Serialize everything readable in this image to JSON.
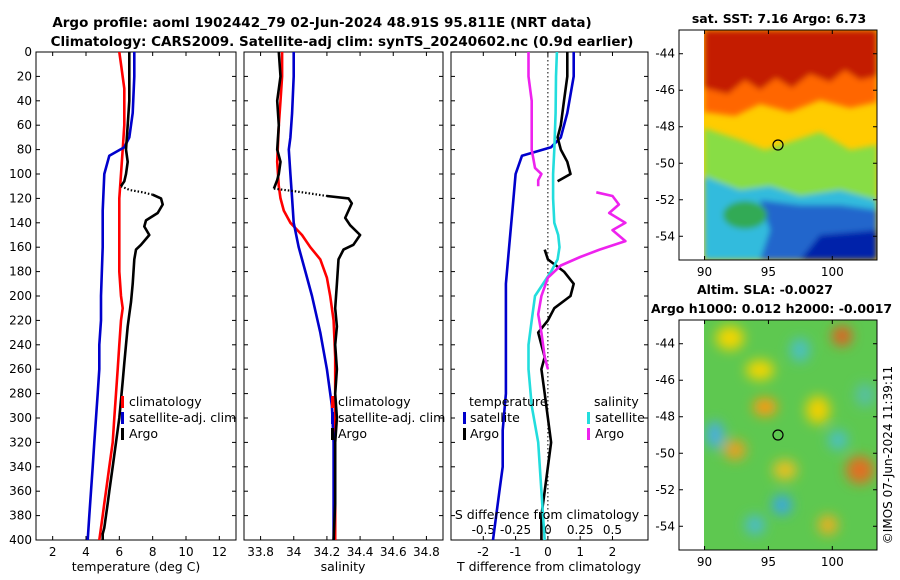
{
  "titles": {
    "line1": "Argo profile: aoml 1902442_79 02-Jun-2024 48.91S 95.811E (NRT data)",
    "line2": "Climatology: CARS2009. Satellite-adj clim: synTS_20240602.nc (0.9d earlier)"
  },
  "side_label": "©IMOS 07-Jun-2024 11:39:11",
  "colors": {
    "red": "#ff0000",
    "blue": "#0000cc",
    "black": "#000000",
    "cyan": "#22dddd",
    "magenta": "#ee22ee"
  },
  "chart_data": [
    {
      "type": "line",
      "id": "temperature",
      "xlabel": "temperature (deg C)",
      "xlim": [
        1,
        13
      ],
      "xticks": [
        2,
        4,
        6,
        8,
        10,
        12
      ],
      "ylim": [
        400,
        0
      ],
      "yticks": [
        0,
        20,
        40,
        60,
        80,
        100,
        120,
        140,
        160,
        180,
        200,
        220,
        240,
        260,
        280,
        300,
        320,
        340,
        360,
        380,
        400
      ],
      "legend": [
        "climatology",
        "satellite-adj. clim",
        "Argo"
      ],
      "series": [
        {
          "name": "climatology",
          "color": "red",
          "x": [
            6.0,
            6.1,
            6.3,
            6.3,
            6.2,
            6.1,
            6.0,
            6.0,
            6.0,
            6.0,
            6.1,
            6.2,
            6.1,
            6.0,
            5.9,
            5.8,
            5.7,
            5.6,
            5.4,
            5.2,
            5.1,
            5.0,
            4.9,
            4.8
          ],
          "y": [
            0,
            10,
            30,
            60,
            80,
            100,
            120,
            140,
            160,
            180,
            200,
            210,
            220,
            240,
            260,
            280,
            300,
            320,
            340,
            360,
            370,
            380,
            390,
            400
          ]
        },
        {
          "name": "satellite-adj. clim",
          "color": "blue",
          "x": [
            6.9,
            6.9,
            6.8,
            6.6,
            6.3,
            5.4,
            5.1,
            5.0,
            5.0,
            4.9,
            4.9,
            4.8,
            4.8,
            4.7,
            4.6,
            4.5,
            4.4,
            4.3,
            4.2,
            4.1
          ],
          "y": [
            0,
            20,
            50,
            70,
            78,
            85,
            100,
            130,
            160,
            200,
            220,
            240,
            260,
            280,
            300,
            320,
            340,
            360,
            380,
            400
          ]
        },
        {
          "name": "Argo",
          "color": "black",
          "x": [
            6.6,
            6.6,
            6.6,
            6.5,
            6.4,
            6.5,
            6.4,
            6.3,
            6.1
          ],
          "y": [
            0,
            20,
            40,
            60,
            80,
            90,
            100,
            106,
            110
          ],
          "dotted": false
        },
        {
          "name": "Argo-gap",
          "color": "black",
          "x": [
            6.1,
            6.6,
            7.4,
            8.0
          ],
          "y": [
            110,
            113,
            115,
            117
          ],
          "dotted": true
        },
        {
          "name": "Argo-deep",
          "color": "black",
          "x": [
            8.0,
            8.5,
            8.6,
            8.3,
            7.6,
            7.5,
            7.8,
            7.3,
            7.0,
            6.9,
            6.8,
            6.7,
            6.6,
            6.5,
            6.4,
            6.3,
            6.2,
            6.1,
            6.0,
            5.8,
            5.6,
            5.4,
            5.3,
            5.2,
            5.1,
            5.0,
            5.0
          ],
          "y": [
            117,
            120,
            125,
            132,
            138,
            143,
            150,
            158,
            162,
            170,
            190,
            205,
            215,
            225,
            240,
            255,
            270,
            285,
            300,
            320,
            340,
            360,
            370,
            380,
            390,
            395,
            400
          ],
          "dotted": false
        }
      ]
    },
    {
      "type": "line",
      "id": "salinity",
      "xlabel": "salinity",
      "xlim": [
        33.7,
        34.9
      ],
      "xticks": [
        33.8,
        34.0,
        34.2,
        34.4,
        34.6,
        34.8
      ],
      "xtick_labels": [
        "33.8",
        "34",
        "34.2",
        "34.4",
        "34.6",
        "34.8"
      ],
      "ylim": [
        400,
        0
      ],
      "legend": [
        "climatology",
        "satellite-adj. clim",
        "Argo"
      ],
      "series": [
        {
          "name": "climatology",
          "color": "red",
          "x": [
            33.93,
            33.93,
            33.92,
            33.91,
            33.9,
            33.91,
            33.92,
            33.94,
            33.98,
            34.05,
            34.1,
            34.16,
            34.2,
            34.22,
            34.24,
            34.25,
            34.25,
            34.25,
            34.25,
            34.25
          ],
          "y": [
            0,
            20,
            40,
            60,
            90,
            110,
            120,
            130,
            140,
            150,
            160,
            170,
            185,
            200,
            220,
            250,
            280,
            320,
            360,
            400
          ]
        },
        {
          "name": "satellite-adj. clim",
          "color": "blue",
          "x": [
            34.0,
            34.0,
            33.99,
            33.98,
            33.97,
            33.98,
            33.99,
            34.0,
            34.03,
            34.07,
            34.11,
            34.16,
            34.2,
            34.23,
            34.24,
            34.24,
            34.24
          ],
          "y": [
            0,
            20,
            50,
            70,
            80,
            100,
            120,
            140,
            160,
            180,
            200,
            230,
            260,
            290,
            320,
            360,
            400
          ]
        },
        {
          "name": "Argo",
          "color": "black",
          "x": [
            33.91,
            33.92,
            33.9,
            33.91,
            33.9,
            33.92,
            33.91,
            33.9,
            33.88
          ],
          "y": [
            0,
            20,
            40,
            60,
            80,
            90,
            100,
            105,
            112
          ],
          "dotted": false
        },
        {
          "name": "Argo-gap",
          "color": "black",
          "x": [
            33.88,
            34.0,
            34.1,
            34.2
          ],
          "y": [
            112,
            114,
            116,
            118
          ],
          "dotted": true
        },
        {
          "name": "Argo-deep",
          "color": "black",
          "x": [
            34.2,
            34.33,
            34.35,
            34.33,
            34.31,
            34.34,
            34.4,
            34.36,
            34.3,
            34.27,
            34.26,
            34.25,
            34.26,
            34.25,
            34.26,
            34.25,
            34.26,
            34.25,
            34.25,
            34.25,
            34.24
          ],
          "y": [
            118,
            120,
            124,
            130,
            136,
            142,
            150,
            158,
            162,
            170,
            190,
            210,
            225,
            240,
            260,
            280,
            300,
            320,
            340,
            370,
            400
          ],
          "dotted": false
        }
      ]
    },
    {
      "type": "line",
      "id": "difference",
      "xlabel": "T difference from climatology",
      "xlabel_top": "S difference from climatology",
      "xlim": [
        -3,
        3.1
      ],
      "xticks": [
        -2,
        -1,
        0,
        1,
        2
      ],
      "top_ticks": [
        -0.5,
        -0.25,
        0,
        0.25,
        0.5
      ],
      "top_tick_labels": [
        "-0.5",
        "-0.25",
        "0",
        "0.25",
        "0.5"
      ],
      "top_scale": 4,
      "ylim": [
        400,
        0
      ],
      "legend_title_left": "temperature",
      "legend_title_right": "salinity",
      "legend_left": [
        "satellite",
        "Argo"
      ],
      "legend_right": [
        "satellite",
        "Argo"
      ],
      "series": [
        {
          "name": "T satellite",
          "color": "blue",
          "x": [
            0.8,
            0.8,
            0.6,
            0.4,
            0.1,
            -0.8,
            -1.0,
            -1.1,
            -1.2,
            -1.3,
            -1.3,
            -1.3,
            -1.3,
            -1.4,
            -1.4,
            -1.5,
            -1.6,
            -1.7
          ],
          "y": [
            0,
            20,
            50,
            70,
            78,
            85,
            100,
            130,
            160,
            190,
            220,
            250,
            280,
            310,
            340,
            360,
            380,
            400
          ]
        },
        {
          "name": "T Argo",
          "color": "black",
          "x": [
            0.6,
            0.6,
            0.5,
            0.4,
            0.3,
            0.4,
            0.6,
            0.7,
            0.3
          ],
          "y": [
            0,
            20,
            40,
            60,
            70,
            80,
            90,
            100,
            106
          ]
        },
        {
          "name": "T Argo deep",
          "color": "black",
          "x": [
            -0.1,
            0.0,
            0.5,
            0.8,
            0.7,
            0.2,
            0.0,
            -0.3,
            -0.2,
            -0.1,
            -0.2,
            -0.1,
            0.0,
            0.1,
            0.0,
            -0.1,
            -0.2,
            -0.2
          ],
          "y": [
            162,
            170,
            180,
            190,
            200,
            210,
            220,
            230,
            240,
            250,
            260,
            280,
            300,
            320,
            340,
            360,
            380,
            400
          ]
        },
        {
          "name": "S satellite",
          "color": "cyan",
          "x": [
            0.28,
            0.25,
            0.24,
            0.2,
            0.16,
            0.16,
            0.2,
            0.32,
            0.36,
            0.3,
            0.1,
            -0.4,
            -0.5,
            -0.6,
            -0.6,
            -0.5,
            -0.3,
            -0.2,
            -0.1
          ],
          "y": [
            0,
            20,
            50,
            80,
            100,
            120,
            140,
            150,
            160,
            170,
            180,
            200,
            220,
            240,
            260,
            290,
            320,
            360,
            400
          ]
        },
        {
          "name": "S Argo",
          "color": "magenta",
          "x": [
            -0.6,
            -0.6,
            -0.5,
            -0.5,
            -0.5,
            -0.4,
            -0.2,
            -0.3,
            -0.3
          ],
          "y": [
            0,
            20,
            40,
            60,
            80,
            95,
            100,
            105,
            110
          ]
        },
        {
          "name": "S Argo deep",
          "color": "magenta",
          "x": [
            1.5,
            2.0,
            2.2,
            1.9,
            2.4,
            2.0,
            2.4,
            1.6,
            1.0,
            0.4,
            0.0,
            -0.2,
            -0.3,
            -0.2,
            -0.1,
            0.0
          ],
          "y": [
            115,
            118,
            125,
            132,
            140,
            146,
            155,
            162,
            168,
            175,
            185,
            200,
            215,
            230,
            250,
            260
          ]
        }
      ]
    },
    {
      "type": "heatmap",
      "id": "sst_map",
      "title": "sat. SST: 7.16 Argo: 6.73",
      "xlim": [
        88,
        103.5
      ],
      "ylim": [
        -55.3,
        -42.7
      ],
      "xticks": [
        90,
        95,
        100
      ],
      "yticks": [
        -44,
        -46,
        -48,
        -50,
        -52,
        -54
      ],
      "argo_position": {
        "lon": 95.811,
        "lat": -48.91
      }
    },
    {
      "type": "heatmap",
      "id": "sla_map",
      "title_line1": "Altim. SLA: -0.0027",
      "title_line2": "Argo h1000: 0.012 h2000: -0.0017",
      "xlim": [
        88,
        103.5
      ],
      "ylim": [
        -55.3,
        -42.7
      ],
      "xticks": [
        90,
        95,
        100
      ],
      "yticks": [
        -44,
        -46,
        -48,
        -50,
        -52,
        -54
      ],
      "argo_position": {
        "lon": 95.811,
        "lat": -48.91
      }
    }
  ]
}
